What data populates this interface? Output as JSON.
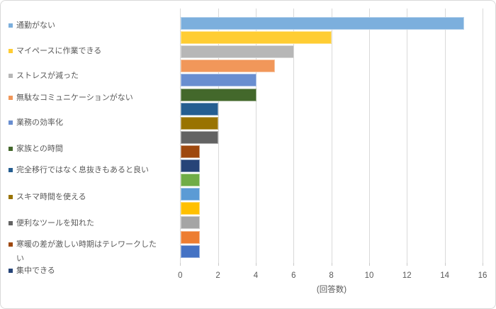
{
  "chart_data": {
    "type": "bar",
    "orientation": "horizontal",
    "title": "",
    "xlabel": "(回答数)",
    "xlim": [
      0,
      16
    ],
    "xticks": [
      0,
      2,
      4,
      6,
      8,
      10,
      12,
      14,
      16
    ],
    "grid": true,
    "legend_position": "left",
    "series": [
      {
        "label": "通勤がない",
        "value": 15,
        "color": "#7CAFDD"
      },
      {
        "label": "マイペースに作業できる",
        "value": 8,
        "color": "#FFCD33"
      },
      {
        "label": "ストレスが減った",
        "value": 6,
        "color": "#B7B7B7"
      },
      {
        "label": "無駄なコミュニケーションがない",
        "value": 5,
        "color": "#F1975A"
      },
      {
        "label": "業務の効率化",
        "value": 4,
        "color": "#698ED0"
      },
      {
        "label": "家族との時間",
        "value": 4,
        "color": "#43682B"
      },
      {
        "label": "完全移行ではなく息抜きもあると良い",
        "value": 2,
        "color": "#255E91"
      },
      {
        "label": "スキマ時間を使える",
        "value": 2,
        "color": "#997300"
      },
      {
        "label": "便利なツールを知れた",
        "value": 2,
        "color": "#636363"
      },
      {
        "label": "寒暖の差が激しい時期はテレワークしたい",
        "value": 1,
        "color": "#9E480E"
      },
      {
        "label": "集中できる",
        "value": 1,
        "color": "#264478"
      },
      {
        "label": "",
        "value": 1,
        "color": "#70AD47"
      },
      {
        "label": "",
        "value": 1,
        "color": "#5B9BD5"
      },
      {
        "label": "",
        "value": 1,
        "color": "#FFC000"
      },
      {
        "label": "",
        "value": 1,
        "color": "#A5A5A5"
      },
      {
        "label": "",
        "value": 1,
        "color": "#ED7D31"
      },
      {
        "label": "",
        "value": 1,
        "color": "#4472C4"
      }
    ],
    "colors": {
      "gridline": "#D9D9D9",
      "axis_text": "#595959",
      "background": "#FFFFFF",
      "frame_border": "#D9D9D9"
    }
  }
}
